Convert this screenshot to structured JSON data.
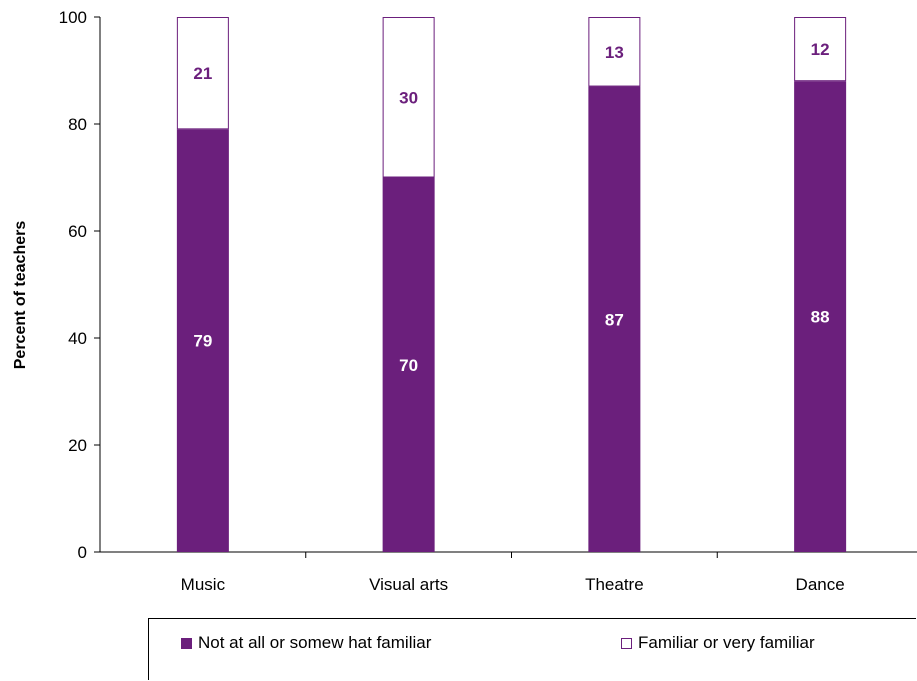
{
  "chart_data": {
    "type": "bar",
    "stacked": true,
    "categories": [
      "Music",
      "Visual arts",
      "Theatre",
      "Dance"
    ],
    "series": [
      {
        "name": "Not at all or somew hat familiar",
        "values": [
          79,
          70,
          87,
          88
        ],
        "color": "#6b1f7c"
      },
      {
        "name": "Familiar or very familiar",
        "values": [
          21,
          30,
          13,
          12
        ],
        "color": "#ffffff"
      }
    ],
    "title": "",
    "xlabel": "",
    "ylabel": "Percent of teachers",
    "ylim": [
      0,
      100
    ],
    "yticks": [
      0,
      20,
      40,
      60,
      80,
      100
    ],
    "grid": false,
    "legend_position": "bottom",
    "accent_color": "#6b1f7c"
  }
}
